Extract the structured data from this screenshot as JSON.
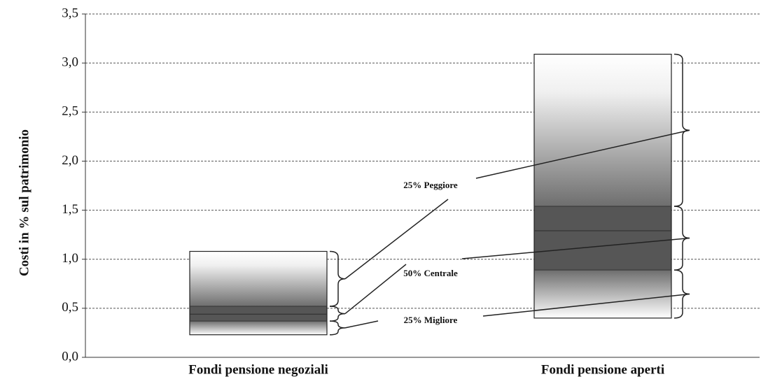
{
  "chart_data": {
    "type": "box",
    "y_label": "Costi in % sul patrimonio",
    "categories": [
      "Fondi pensione negoziali",
      "Fondi pensione aperti"
    ],
    "min": [
      0.23,
      0.4
    ],
    "q1": [
      0.37,
      0.89
    ],
    "median": [
      0.44,
      1.29
    ],
    "q3": [
      0.52,
      1.54
    ],
    "max": [
      1.08,
      3.09
    ],
    "annotations": [
      "25% Peggiore",
      "50% Centrale",
      "25% Migliore"
    ],
    "ylim": [
      0,
      3.5
    ],
    "yticks": [
      {
        "value": 0,
        "label": "0,0"
      },
      {
        "value": 0.5,
        "label": "0,5"
      },
      {
        "value": 1,
        "label": "1,0"
      },
      {
        "value": 1.5,
        "label": "1,5"
      },
      {
        "value": 2,
        "label": "2,0"
      },
      {
        "value": 2.5,
        "label": "2,5"
      },
      {
        "value": 3,
        "label": "3,0"
      },
      {
        "value": 3.5,
        "label": "3,5"
      }
    ],
    "grid": true
  }
}
